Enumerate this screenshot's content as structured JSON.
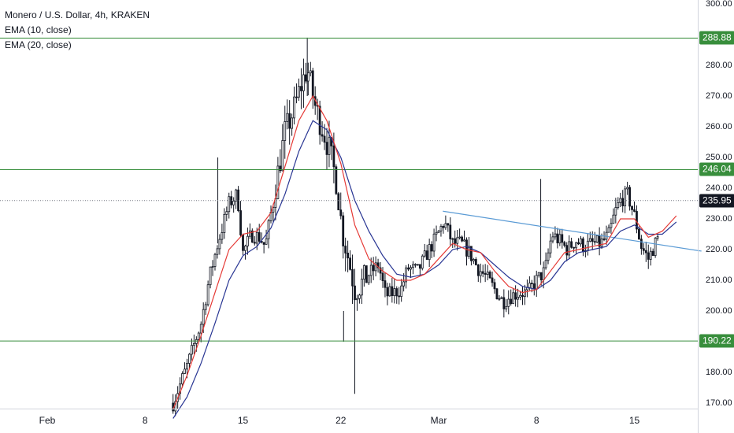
{
  "legend": {
    "title": "Monero / U.S. Dollar, 4h, KRAKEN",
    "ema1": "EMA (10, close)",
    "ema2": "EMA (20, close)"
  },
  "colors": {
    "up": "#131722",
    "hline": "#388e3c",
    "trend": "#5b9bd5",
    "ema10": "#e53935",
    "ema20": "#283593",
    "last": "#131722"
  },
  "chart_data": {
    "type": "candlestick",
    "y_ticks": [
      "300.00",
      "290.00",
      "280.00",
      "270.00",
      "260.00",
      "250.00",
      "240.00",
      "230.00",
      "220.00",
      "210.00",
      "200.00",
      "190.00",
      "180.00",
      "170.00"
    ],
    "y_tick_values": [
      300,
      290,
      280,
      270,
      260,
      250,
      240,
      230,
      220,
      210,
      200,
      190,
      180,
      170
    ],
    "x_ticks": [
      "Feb",
      "8",
      "15",
      "22",
      "Mar",
      "8",
      "15"
    ],
    "x_tick_days": [
      1,
      8,
      15,
      22,
      29,
      36,
      43
    ],
    "horizontal_levels": [
      {
        "label": "288.88",
        "value": 288.88
      },
      {
        "label": "246.04",
        "value": 246.04
      },
      {
        "label": "190.22",
        "value": 190.22
      }
    ],
    "last_price": {
      "label": "235.95",
      "value": 235.95
    },
    "trendline": {
      "from": {
        "day": 29.3,
        "value": 232.5
      },
      "to": {
        "day": 47.8,
        "value": 219.5
      }
    },
    "ema10_points": [
      [
        10.0,
        168
      ],
      [
        11.0,
        179
      ],
      [
        12.0,
        192
      ],
      [
        13.0,
        206
      ],
      [
        14.0,
        220
      ],
      [
        15.0,
        225
      ],
      [
        16.0,
        226
      ],
      [
        17.0,
        232
      ],
      [
        18.0,
        247
      ],
      [
        19.0,
        262
      ],
      [
        20.0,
        270
      ],
      [
        21.0,
        262
      ],
      [
        22.0,
        248
      ],
      [
        23.0,
        228
      ],
      [
        24.0,
        217
      ],
      [
        25.0,
        213
      ],
      [
        26.0,
        210
      ],
      [
        27.0,
        210
      ],
      [
        28.0,
        212
      ],
      [
        29.0,
        217
      ],
      [
        30.0,
        222
      ],
      [
        31.0,
        220
      ],
      [
        32.0,
        219
      ],
      [
        33.0,
        213
      ],
      [
        34.0,
        208
      ],
      [
        35.0,
        206
      ],
      [
        36.0,
        207
      ],
      [
        37.0,
        213
      ],
      [
        38.0,
        219
      ],
      [
        39.0,
        220
      ],
      [
        40.0,
        221
      ],
      [
        41.0,
        222
      ],
      [
        42.0,
        230
      ],
      [
        43.0,
        230
      ],
      [
        44.0,
        224
      ],
      [
        45.0,
        226
      ],
      [
        46.0,
        231
      ]
    ],
    "ema20_points": [
      [
        10.0,
        165
      ],
      [
        11.0,
        172
      ],
      [
        12.0,
        183
      ],
      [
        13.0,
        196
      ],
      [
        14.0,
        210
      ],
      [
        15.0,
        218
      ],
      [
        16.0,
        221
      ],
      [
        17.0,
        227
      ],
      [
        18.0,
        238
      ],
      [
        19.0,
        252
      ],
      [
        20.0,
        262
      ],
      [
        21.0,
        259
      ],
      [
        22.0,
        250
      ],
      [
        23.0,
        236
      ],
      [
        24.0,
        226
      ],
      [
        25.0,
        218
      ],
      [
        26.0,
        212
      ],
      [
        27.0,
        211
      ],
      [
        28.0,
        212
      ],
      [
        29.0,
        215
      ],
      [
        30.0,
        220
      ],
      [
        31.0,
        221
      ],
      [
        32.0,
        219
      ],
      [
        33.0,
        215
      ],
      [
        34.0,
        211
      ],
      [
        35.0,
        208
      ],
      [
        36.0,
        207
      ],
      [
        37.0,
        210
      ],
      [
        38.0,
        216
      ],
      [
        39.0,
        219
      ],
      [
        40.0,
        220
      ],
      [
        41.0,
        221
      ],
      [
        42.0,
        226
      ],
      [
        43.0,
        228
      ],
      [
        44.0,
        225
      ],
      [
        45.0,
        225
      ],
      [
        46.0,
        229
      ]
    ],
    "price_path": [
      [
        10.0,
        170
      ],
      [
        11.0,
        182
      ],
      [
        12.0,
        196
      ],
      [
        12.6,
        211
      ],
      [
        13.2,
        222
      ],
      [
        14.0,
        235
      ],
      [
        14.6,
        238
      ],
      [
        15.0,
        219
      ],
      [
        15.6,
        225
      ],
      [
        16.2,
        224
      ],
      [
        16.6,
        221
      ],
      [
        17.3,
        240
      ],
      [
        18.0,
        258
      ],
      [
        18.6,
        265
      ],
      [
        19.2,
        274
      ],
      [
        19.6,
        279
      ],
      [
        20.2,
        266
      ],
      [
        20.8,
        258
      ],
      [
        21.2,
        252
      ],
      [
        21.7,
        242
      ],
      [
        22.1,
        226
      ],
      [
        22.6,
        216
      ],
      [
        23.0,
        207
      ],
      [
        23.5,
        209
      ],
      [
        24.0,
        212
      ],
      [
        24.7,
        215
      ],
      [
        25.2,
        205
      ],
      [
        25.8,
        206
      ],
      [
        26.3,
        207
      ],
      [
        26.8,
        214
      ],
      [
        27.5,
        213
      ],
      [
        28.2,
        219
      ],
      [
        28.7,
        223
      ],
      [
        29.4,
        229
      ],
      [
        30.0,
        222
      ],
      [
        30.6,
        222
      ],
      [
        31.2,
        219
      ],
      [
        31.8,
        214
      ],
      [
        32.4,
        211
      ],
      [
        33.0,
        207
      ],
      [
        33.6,
        203
      ],
      [
        34.2,
        205
      ],
      [
        34.8,
        206
      ],
      [
        35.4,
        206
      ],
      [
        36.0,
        210
      ],
      [
        36.6,
        213
      ],
      [
        37.1,
        225
      ],
      [
        37.6,
        223
      ],
      [
        38.2,
        220
      ],
      [
        38.8,
        223
      ],
      [
        39.4,
        221
      ],
      [
        40.0,
        222
      ],
      [
        40.6,
        222
      ],
      [
        41.2,
        225
      ],
      [
        41.6,
        232
      ],
      [
        42.0,
        236
      ],
      [
        42.5,
        238
      ],
      [
        43.0,
        231
      ],
      [
        43.5,
        221
      ],
      [
        44.0,
        217
      ],
      [
        44.5,
        222
      ],
      [
        45.0,
        226
      ],
      [
        45.5,
        231
      ],
      [
        46.0,
        235
      ]
    ]
  }
}
